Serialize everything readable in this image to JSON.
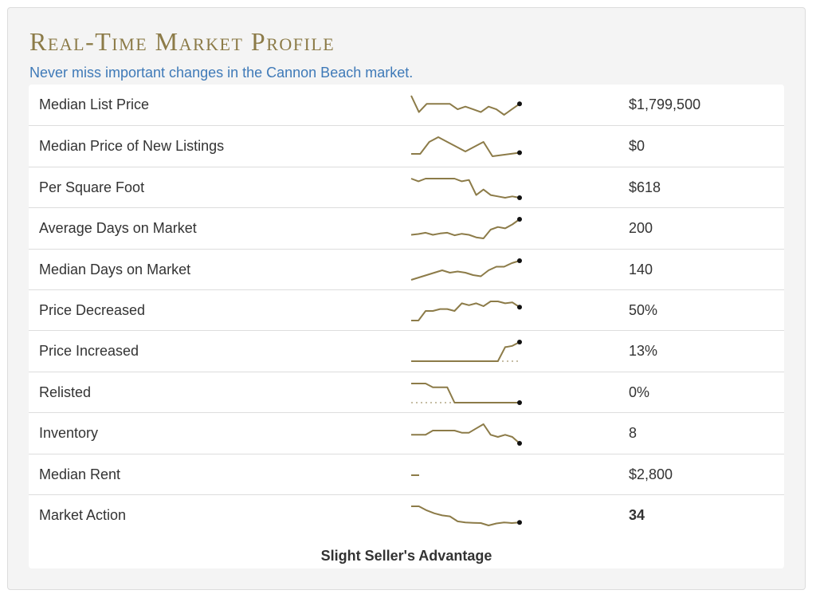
{
  "header": {
    "title": "Real-Time Market Profile",
    "subtitle": "Never miss important changes in the Cannon Beach market."
  },
  "colors": {
    "title": "#8c7b48",
    "subtitle": "#3f7ab8",
    "sparkline": "#8c7b48",
    "sparkline_endpoint": "#111111"
  },
  "rows": [
    {
      "label": "Median List Price",
      "value": "$1,799,500",
      "bold": false,
      "trend": [
        7,
        1,
        4,
        4,
        4,
        4,
        2,
        3,
        2,
        1,
        3,
        2,
        0,
        2,
        4
      ]
    },
    {
      "label": "Median Price of New Listings",
      "value": "$0",
      "bold": false,
      "trend": [
        3,
        3,
        8,
        10,
        8,
        6,
        4,
        6,
        8,
        2,
        2.5,
        3,
        3.5
      ]
    },
    {
      "label": "Per Square Foot",
      "value": "$618",
      "bold": false,
      "trend": [
        10,
        9,
        10,
        10,
        10,
        10,
        10,
        9,
        9.5,
        4,
        6,
        4,
        3.5,
        3,
        3.5,
        3
      ]
    },
    {
      "label": "Average Days on Market",
      "value": "200",
      "bold": false,
      "trend": [
        2,
        2.3,
        2.8,
        2,
        2.5,
        2.8,
        1.8,
        2.4,
        2,
        1,
        0.6,
        4,
        5,
        4.5,
        6,
        8
      ]
    },
    {
      "label": "Median Days on Market",
      "value": "140",
      "bold": false,
      "trend": [
        1,
        2,
        3,
        4,
        5,
        4,
        4.5,
        4,
        3,
        2.5,
        5,
        6.5,
        6.5,
        8,
        9
      ]
    },
    {
      "label": "Price Decreased",
      "value": "50%",
      "bold": false,
      "trend": [
        0,
        0,
        5,
        5,
        6,
        6,
        5,
        9,
        8,
        9,
        7.5,
        10,
        10,
        9,
        9.5,
        7
      ]
    },
    {
      "label": "Price Increased",
      "value": "13%",
      "bold": false,
      "trend": [
        0,
        0,
        0,
        0,
        0,
        0,
        0,
        0,
        0,
        0,
        0,
        0,
        0,
        5.5,
        6,
        7.5
      ],
      "baseline_dotted": true
    },
    {
      "label": "Relisted",
      "value": "0%",
      "bold": false,
      "trend": [
        5,
        5,
        5,
        4,
        4,
        4,
        0,
        0,
        0,
        0,
        0,
        0,
        0,
        0,
        0,
        0
      ],
      "baseline_dotted": true
    },
    {
      "label": "Inventory",
      "value": "8",
      "bold": false,
      "trend": [
        2,
        2,
        2,
        4,
        4,
        4,
        4,
        3,
        3,
        5,
        7,
        2,
        1,
        2,
        1,
        -2
      ]
    },
    {
      "label": "Median Rent",
      "value": "$2,800",
      "bold": false,
      "trend": [
        5,
        5
      ]
    },
    {
      "label": "Market Action",
      "value": "34",
      "bold": true,
      "trend": [
        10,
        10,
        8,
        6.5,
        5.5,
        5,
        2.5,
        2,
        1.8,
        1.7,
        0.5,
        1.5,
        2,
        1.7,
        2
      ]
    }
  ],
  "footer": {
    "market_action_label": "Slight Seller's Advantage"
  }
}
